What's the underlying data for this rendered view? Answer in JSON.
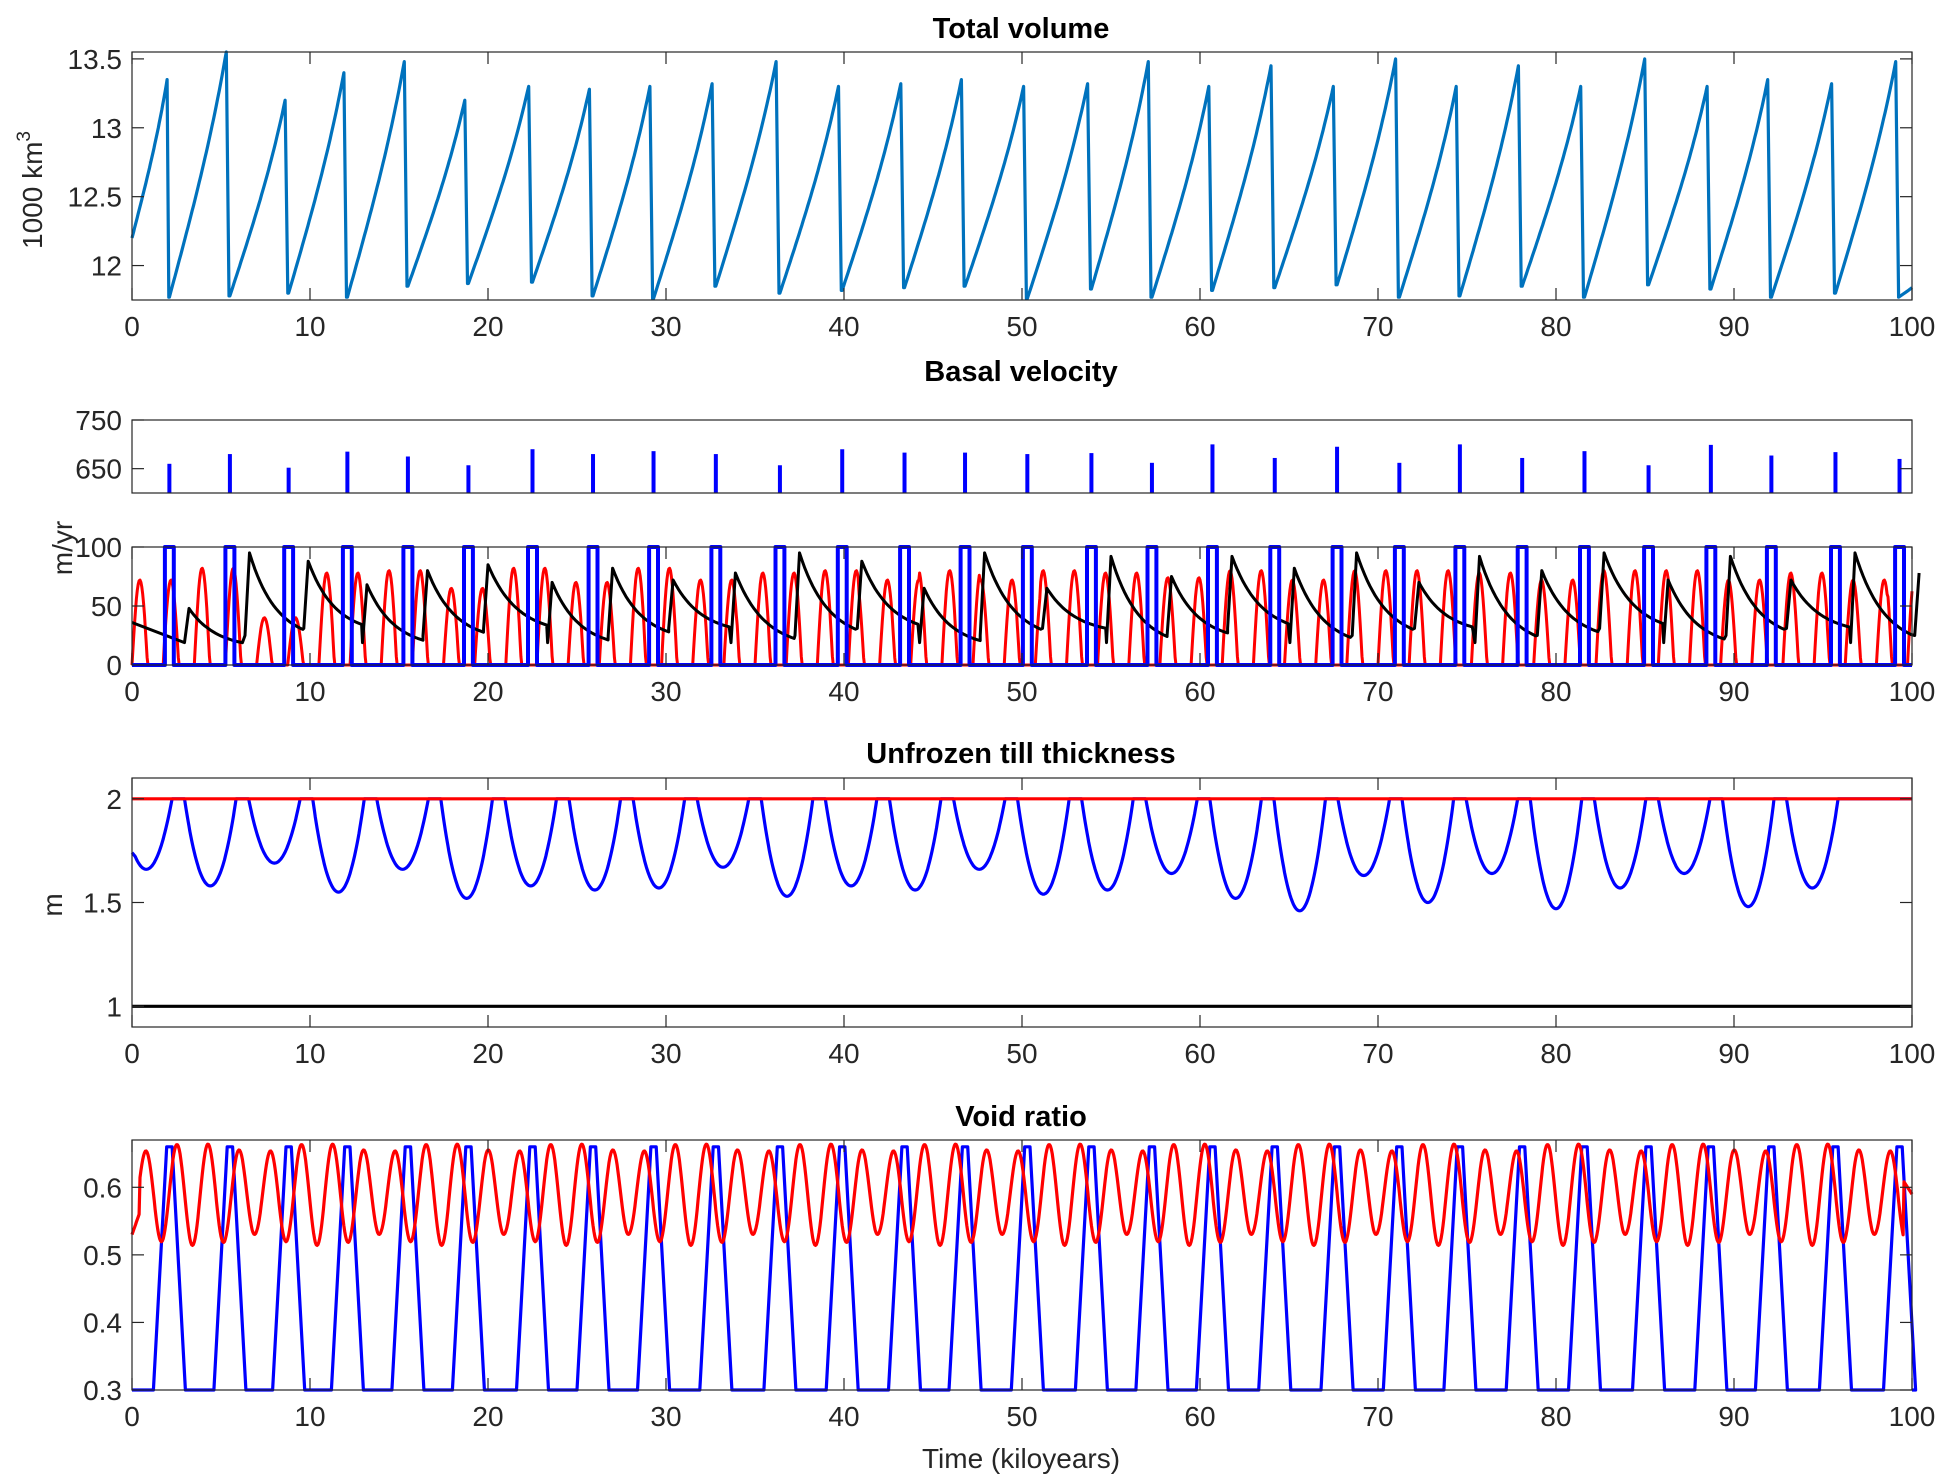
{
  "figure": {
    "xlabel": "Time (kiloyears)",
    "colors": {
      "volume": "#0072BD",
      "blue": "#0000FF",
      "red": "#FF0000",
      "black": "#000000",
      "axes": "#262626"
    }
  },
  "chart_data": [
    {
      "type": "line",
      "title": "Total volume",
      "xlabel": "",
      "ylabel": "1000 km",
      "ylabel_superscript": "3",
      "xlim": [
        0,
        100
      ],
      "ylim": [
        11.75,
        13.55
      ],
      "xticks": [
        "0",
        "10",
        "20",
        "30",
        "40",
        "50",
        "60",
        "70",
        "80",
        "90",
        "100"
      ],
      "yticks": [
        "12",
        "12.5",
        "13",
        "13.5"
      ],
      "cycle_starts_kyr": [
        0.0,
        2.1,
        5.5,
        8.8,
        12.1,
        15.5,
        18.9,
        22.5,
        25.9,
        29.3,
        32.8,
        36.4,
        39.9,
        43.4,
        46.8,
        50.3,
        53.9,
        57.3,
        60.7,
        64.2,
        67.7,
        71.2,
        74.6,
        78.1,
        81.6,
        85.2,
        88.7,
        92.1,
        95.7,
        99.3
      ],
      "series": [
        {
          "color": "#0072BD",
          "peak_values": [
            13.35,
            13.55,
            13.2,
            13.4,
            13.48,
            13.2,
            13.3,
            13.28,
            13.3,
            13.32,
            13.48,
            13.3,
            13.32,
            13.35,
            13.3,
            13.32,
            13.48,
            13.3,
            13.45,
            13.3,
            13.5,
            13.3,
            13.45,
            13.3,
            13.5,
            13.3,
            13.35,
            13.32,
            13.48
          ],
          "min_values": [
            11.77,
            11.78,
            11.8,
            11.77,
            11.85,
            11.87,
            11.88,
            11.78,
            11.76,
            11.85,
            11.8,
            11.82,
            11.84,
            11.85,
            11.76,
            11.83,
            11.77,
            11.82,
            11.84,
            11.86,
            11.77,
            11.78,
            11.85,
            11.77,
            11.86,
            11.83,
            11.77,
            11.8,
            11.77
          ]
        }
      ]
    },
    {
      "type": "line",
      "title": "Basal velocity",
      "ylabel": "m/yr",
      "xlim": [
        0,
        100
      ],
      "ylim_lower": [
        0,
        100
      ],
      "ylim_upper": [
        600,
        750
      ],
      "broken_axis": true,
      "xticks": [
        "0",
        "10",
        "20",
        "30",
        "40",
        "50",
        "60",
        "70",
        "80",
        "90",
        "100"
      ],
      "yticks": [
        "0",
        "50",
        "100",
        "650",
        "750"
      ],
      "series": [
        {
          "color": "#0000FF",
          "spike_peaks": [
            660,
            680,
            652,
            685,
            675,
            657,
            690,
            680,
            686,
            680,
            657,
            690,
            683,
            683,
            680,
            682,
            662,
            700,
            672,
            695,
            662,
            700,
            672,
            686,
            657,
            699,
            677,
            684
          ]
        },
        {
          "color": "#FF0000",
          "peak_values": [
            72,
            82,
            40,
            78,
            80,
            65,
            82,
            70,
            82,
            72,
            78,
            80,
            72,
            80,
            72,
            80,
            78,
            74,
            80,
            72,
            80,
            80,
            78,
            72,
            80,
            80,
            72,
            78,
            72,
            80
          ]
        },
        {
          "color": "#000000",
          "peak_values": [
            48,
            95,
            88,
            68,
            80,
            85,
            70,
            82,
            72,
            78,
            95,
            88,
            65,
            95,
            65,
            92,
            75,
            92,
            82,
            95,
            70,
            92,
            80,
            95,
            72,
            92,
            72,
            95,
            78,
            86
          ]
        }
      ]
    },
    {
      "type": "line",
      "title": "Unfrozen till thickness",
      "ylabel": "m",
      "xlim": [
        0,
        100
      ],
      "ylim": [
        0.9,
        2.1
      ],
      "xticks": [
        "0",
        "10",
        "20",
        "30",
        "40",
        "50",
        "60",
        "70",
        "80",
        "90",
        "100"
      ],
      "yticks": [
        "1",
        "1.5",
        "2"
      ],
      "series": [
        {
          "color": "#0000FF",
          "dip_minima": [
            1.66,
            1.58,
            1.69,
            1.55,
            1.66,
            1.52,
            1.58,
            1.56,
            1.57,
            1.67,
            1.53,
            1.58,
            1.56,
            1.66,
            1.54,
            1.56,
            1.64,
            1.52,
            1.46,
            1.63,
            1.5,
            1.64,
            1.47,
            1.57,
            1.64,
            1.48,
            1.57
          ]
        },
        {
          "color": "#FF0000",
          "constant": 2.0
        },
        {
          "color": "#000000",
          "constant": 1.0
        }
      ]
    },
    {
      "type": "line",
      "title": "Void ratio",
      "xlabel": "Time (kiloyears)",
      "ylabel": "",
      "xlim": [
        0,
        100
      ],
      "ylim": [
        0.3,
        0.67
      ],
      "xticks": [
        "0",
        "10",
        "20",
        "30",
        "40",
        "50",
        "60",
        "70",
        "80",
        "90",
        "100"
      ],
      "yticks": [
        "0.3",
        "0.4",
        "0.5",
        "0.6"
      ],
      "series": [
        {
          "color": "#0000FF",
          "baseline": 0.3,
          "pulse_peak": 0.66,
          "pulse_centers_kyr": [
            2.1,
            5.5,
            8.8,
            12.1,
            15.5,
            18.9,
            22.5,
            25.9,
            29.3,
            32.8,
            36.4,
            39.9,
            43.4,
            46.8,
            50.3,
            53.9,
            57.3,
            60.7,
            64.2,
            67.7,
            71.2,
            74.6,
            78.1,
            81.6,
            85.2,
            88.7,
            92.1,
            95.7,
            99.3
          ]
        },
        {
          "color": "#FF0000",
          "range": [
            0.49,
            0.665
          ],
          "start_value": 0.53,
          "end_value": 0.59
        }
      ]
    }
  ]
}
